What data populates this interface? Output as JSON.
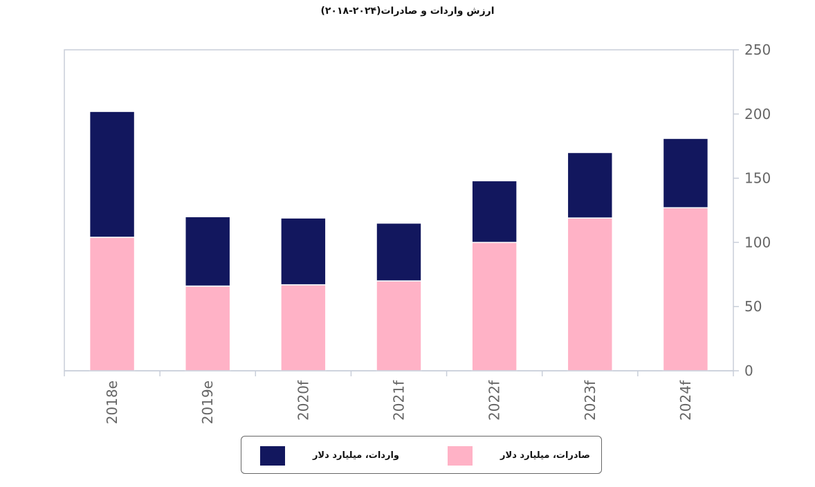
{
  "chart_data": {
    "type": "bar",
    "stacked": true,
    "title": "ارزش واردات و صادرات(۲۰۲۴-۲۰۱۸)",
    "categories": [
      "2018e",
      "2019e",
      "2020f",
      "2021f",
      "2022f",
      "2023f",
      "2024f"
    ],
    "series": [
      {
        "name": "صادرات، میلیارد دلار",
        "color": "#FFB2C6",
        "values": [
          104,
          66,
          67,
          70,
          100,
          119,
          127
        ]
      },
      {
        "name": "واردات، میلیارد دلار",
        "color": "#12175E",
        "values": [
          98,
          54,
          52,
          45,
          48,
          51,
          54
        ]
      }
    ],
    "ylim": [
      0,
      250
    ],
    "yticks": [
      0,
      50,
      100,
      150,
      200,
      250
    ],
    "y_axis_side": "right",
    "grid": false,
    "legend_position": "bottom"
  }
}
